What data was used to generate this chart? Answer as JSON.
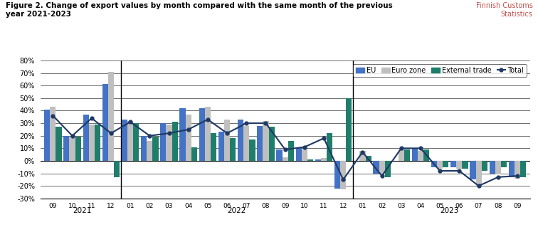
{
  "title_left": "Figure 2. Change of export values by month compared with the same month of the previous\nyear 2021-2023",
  "title_right": "Finnish Customs\nStatistics",
  "months": [
    "09",
    "10",
    "11",
    "12",
    "01",
    "02",
    "03",
    "04",
    "05",
    "06",
    "07",
    "08",
    "09",
    "10",
    "11",
    "12",
    "01",
    "02",
    "03",
    "04",
    "05",
    "06",
    "07",
    "08",
    "09"
  ],
  "EU": [
    0.41,
    0.2,
    0.37,
    0.61,
    0.33,
    0.2,
    0.3,
    0.42,
    0.42,
    0.23,
    0.33,
    0.28,
    0.09,
    0.1,
    0.01,
    -0.22,
    0.0,
    -0.1,
    0.0,
    0.1,
    -0.05,
    -0.05,
    -0.15,
    -0.1,
    -0.13
  ],
  "Euro_zone": [
    0.43,
    0.19,
    0.29,
    0.71,
    0.32,
    0.16,
    0.29,
    0.37,
    0.43,
    0.33,
    0.28,
    0.32,
    0.03,
    0.09,
    0.02,
    -0.23,
    0.08,
    -0.11,
    0.09,
    0.08,
    -0.06,
    -0.06,
    -0.21,
    -0.11,
    -0.14
  ],
  "External_trade": [
    0.27,
    0.19,
    0.29,
    -0.13,
    0.3,
    0.19,
    0.31,
    0.11,
    0.22,
    0.18,
    0.17,
    0.27,
    0.16,
    0.01,
    0.22,
    0.5,
    0.04,
    -0.13,
    0.09,
    0.09,
    -0.05,
    -0.06,
    -0.08,
    -0.05,
    -0.13
  ],
  "Total": [
    0.36,
    0.2,
    0.34,
    0.22,
    0.31,
    0.2,
    0.22,
    0.25,
    0.33,
    0.22,
    0.3,
    0.3,
    0.09,
    0.11,
    0.18,
    -0.15,
    0.07,
    -0.12,
    0.1,
    0.1,
    -0.08,
    -0.08,
    -0.2,
    -0.13,
    -0.12
  ],
  "color_EU": "#4472C4",
  "color_Euro_zone": "#BFBFBF",
  "color_External_trade": "#1F7E6B",
  "color_Total": "#1F3864",
  "ylim": [
    -0.3,
    0.8
  ],
  "yticks": [
    -0.3,
    -0.2,
    -0.1,
    0.0,
    0.1,
    0.2,
    0.3,
    0.4,
    0.5,
    0.6,
    0.7,
    0.8
  ],
  "year_separators": [
    3.5,
    15.5
  ],
  "year_centers": [
    1.5,
    9.5,
    20.5
  ],
  "year_labels": [
    "2021",
    "2022",
    "2023"
  ],
  "background_color": "#FFFFFF"
}
